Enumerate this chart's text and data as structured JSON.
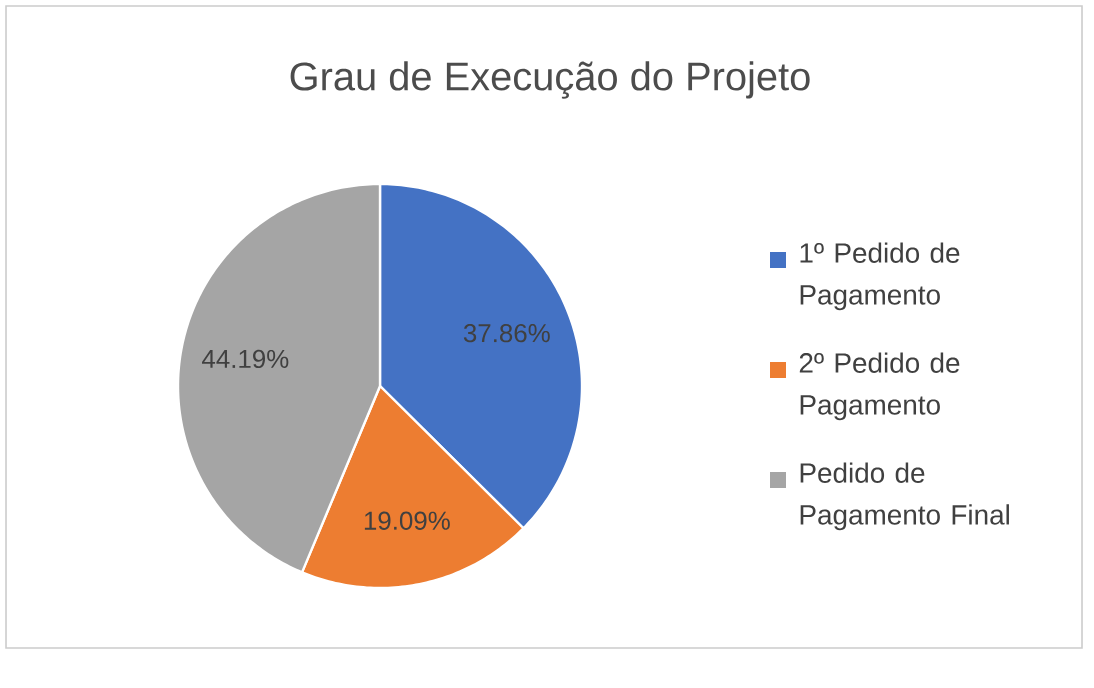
{
  "chart_data": {
    "type": "pie",
    "title": "Grau de Execução do Projeto",
    "categories": [
      "1º Pedido de Pagamento",
      "2º Pedido de Pagamento",
      "Pedido de Pagamento Final"
    ],
    "values": [
      37.86,
      19.09,
      44.19
    ],
    "colors": [
      "#4472c4",
      "#ed7d31",
      "#a5a5a5"
    ],
    "value_labels": [
      "37.86%",
      "19.09%",
      "44.19%"
    ],
    "legend": "right"
  }
}
